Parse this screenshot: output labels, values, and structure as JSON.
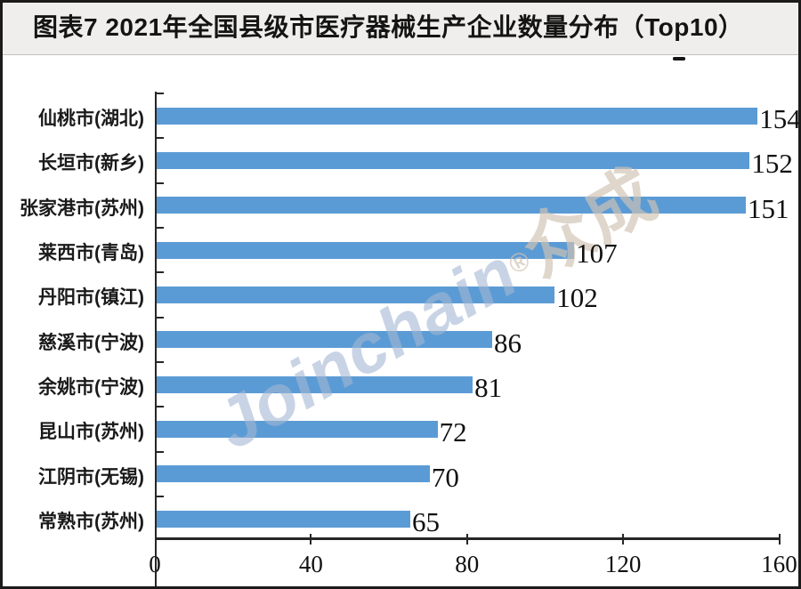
{
  "chart_data": {
    "type": "bar",
    "orientation": "horizontal",
    "title": "图表7 2021年全国县级市医疗器械生产企业数量分布（Top10）",
    "categories": [
      "仙桃市(湖北)",
      "长垣市(新乡)",
      "张家港市(苏州)",
      "莱西市(青岛)",
      "丹阳市(镇江)",
      "慈溪市(宁波)",
      "余姚市(宁波)",
      "昆山市(苏州)",
      "江阴市(无锡)",
      "常熟市(苏州)"
    ],
    "values": [
      154,
      152,
      151,
      107,
      102,
      86,
      81,
      72,
      70,
      65
    ],
    "xlabel": "",
    "ylabel": "",
    "xlim": [
      0,
      160
    ],
    "x_ticks": [
      0,
      40,
      80,
      120,
      160
    ],
    "grid": false,
    "legend": "none",
    "value_labels_shown": true,
    "bar_color": "#5B9BD5"
  },
  "watermark": {
    "latin": "Joinchain",
    "reg": "®",
    "cjk": "众成"
  },
  "colors": {
    "bar": "#5B9BD5",
    "title_band_bg": "#EFEEEC",
    "frame_border": "#1B1B1B",
    "axis": "#262626",
    "title_text": "#141414",
    "watermark_latin": "#A4B7D4",
    "watermark_cjk": "#D0C3B4"
  }
}
